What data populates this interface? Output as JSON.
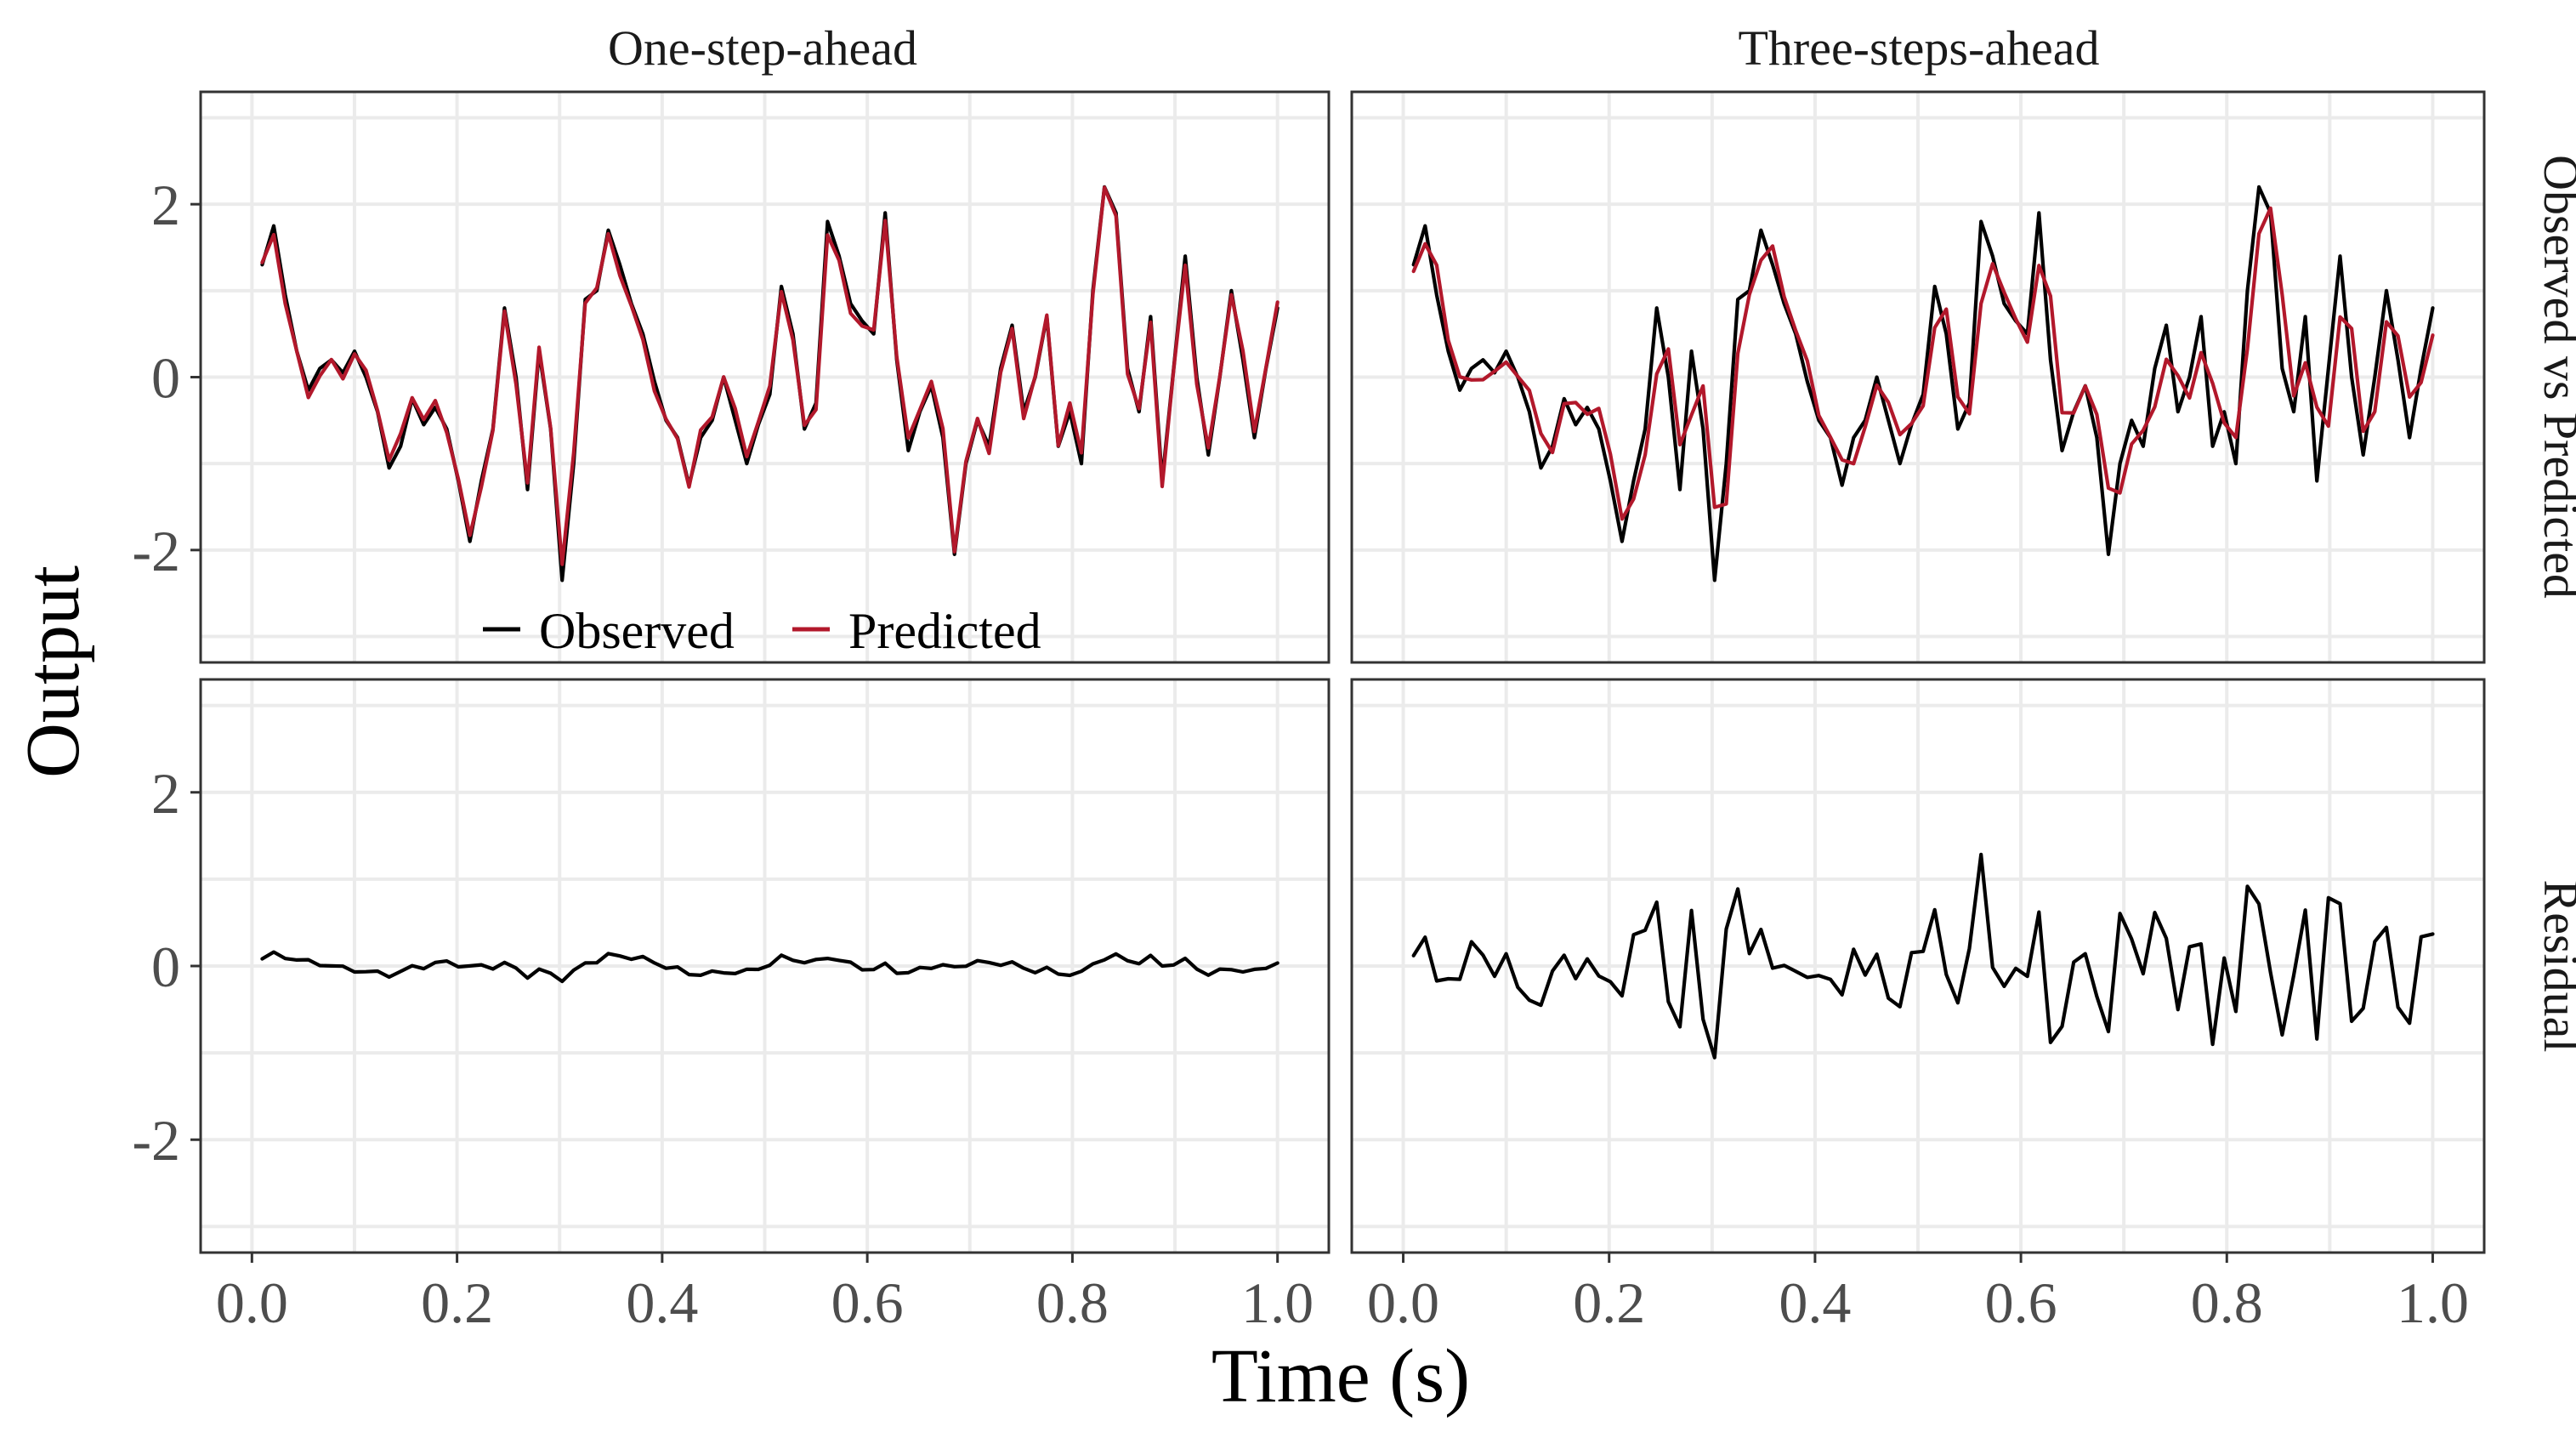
{
  "chart_data": {
    "type": "line",
    "layout": "facet-grid",
    "xlabel": "Time (s)",
    "ylabel": "Output",
    "xlim": [
      -0.05,
      1.05
    ],
    "ylim": [
      -3.3,
      3.3
    ],
    "x_ticks": [
      "0.0",
      "0.2",
      "0.4",
      "0.6",
      "0.8",
      "1.0"
    ],
    "y_ticks": [
      "2",
      "0",
      "-2"
    ],
    "column_strips": [
      "One-step-ahead",
      "Three-steps-ahead"
    ],
    "row_strips": [
      "Observed vs Predicted",
      "Residual"
    ],
    "legend": {
      "placement": "inside bottom of top-left panel",
      "entries": [
        {
          "label": "Observed",
          "color": "#000000"
        },
        {
          "label": "Predicted",
          "color": "#b2182b"
        }
      ]
    },
    "colors": {
      "observed": "#000000",
      "predicted": "#b2182b",
      "residual": "#000000"
    },
    "x_start": 0.01,
    "x_end": 1.0,
    "observed": [
      1.3,
      1.75,
      0.95,
      0.3,
      -0.15,
      0.1,
      0.2,
      0.05,
      0.3,
      0.0,
      -0.4,
      -1.05,
      -0.8,
      -0.25,
      -0.55,
      -0.35,
      -0.6,
      -1.2,
      -1.9,
      -1.2,
      -0.6,
      0.8,
      0.0,
      -1.3,
      0.3,
      -0.6,
      -2.35,
      -1.0,
      0.9,
      1.0,
      1.7,
      1.3,
      0.85,
      0.5,
      -0.05,
      -0.5,
      -0.7,
      -1.25,
      -0.7,
      -0.5,
      0.0,
      -0.5,
      -1.0,
      -0.55,
      -0.2,
      1.05,
      0.5,
      -0.6,
      -0.3,
      1.8,
      1.4,
      0.85,
      0.65,
      0.5,
      1.9,
      0.2,
      -0.85,
      -0.4,
      -0.1,
      -0.7,
      -2.05,
      -1.0,
      -0.5,
      -0.8,
      0.1,
      0.6,
      -0.4,
      0.0,
      0.7,
      -0.8,
      -0.4,
      -1.0,
      1.0,
      2.2,
      1.9,
      0.1,
      -0.4,
      0.7,
      -1.2,
      0.1,
      1.4,
      0.0,
      -0.9,
      0.0,
      1.0,
      0.2,
      -0.7,
      0.1,
      0.8
    ]
  }
}
